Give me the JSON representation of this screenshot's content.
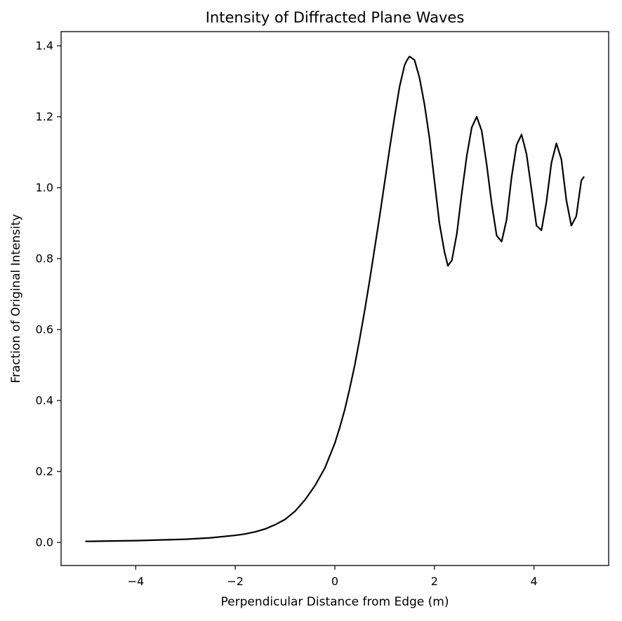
{
  "chart_data": {
    "type": "line",
    "title": "Intensity of Diffracted Plane Waves",
    "xlabel": "Perpendicular Distance from Edge (m)",
    "ylabel": "Fraction of Original Intensity",
    "xlim": [
      -5.5,
      5.5
    ],
    "ylim": [
      -0.065,
      1.44
    ],
    "x_ticks": [
      -4,
      -2,
      0,
      2,
      4
    ],
    "x_tick_labels": [
      "−4",
      "−2",
      "0",
      "2",
      "4"
    ],
    "y_ticks": [
      0.0,
      0.2,
      0.4,
      0.6,
      0.8,
      1.0,
      1.2,
      1.4
    ],
    "y_tick_labels": [
      "0.0",
      "0.2",
      "0.4",
      "0.6",
      "0.8",
      "1.0",
      "1.2",
      "1.4"
    ],
    "grid": false,
    "legend": "none",
    "line_color": "#000000",
    "series": [
      {
        "x": [
          -5.0,
          -4.5,
          -4.0,
          -3.5,
          -3.0,
          -2.5,
          -2.0,
          -1.8,
          -1.6,
          -1.4,
          -1.2,
          -1.0,
          -0.8,
          -0.6,
          -0.4,
          -0.2,
          0.0,
          0.1,
          0.2,
          0.3,
          0.4,
          0.5,
          0.6,
          0.7,
          0.8,
          0.9,
          1.0,
          1.1,
          1.2,
          1.3,
          1.4,
          1.45,
          1.5,
          1.6,
          1.7,
          1.8,
          1.9,
          2.0,
          2.1,
          2.2,
          2.27,
          2.35,
          2.45,
          2.55,
          2.65,
          2.75,
          2.85,
          2.95,
          3.05,
          3.15,
          3.25,
          3.35,
          3.45,
          3.55,
          3.65,
          3.75,
          3.85,
          3.95,
          4.05,
          4.15,
          4.25,
          4.35,
          4.45,
          4.55,
          4.65,
          4.75,
          4.85,
          4.95,
          5.0
        ],
        "y": [
          0.003,
          0.004,
          0.005,
          0.007,
          0.009,
          0.013,
          0.02,
          0.024,
          0.03,
          0.038,
          0.05,
          0.065,
          0.088,
          0.12,
          0.16,
          0.21,
          0.28,
          0.325,
          0.375,
          0.435,
          0.5,
          0.575,
          0.655,
          0.74,
          0.83,
          0.92,
          1.015,
          1.11,
          1.2,
          1.285,
          1.345,
          1.36,
          1.37,
          1.36,
          1.31,
          1.235,
          1.14,
          1.02,
          0.9,
          0.82,
          0.78,
          0.795,
          0.87,
          0.985,
          1.09,
          1.17,
          1.2,
          1.16,
          1.065,
          0.955,
          0.865,
          0.848,
          0.91,
          1.03,
          1.12,
          1.15,
          1.095,
          0.995,
          0.893,
          0.88,
          0.96,
          1.07,
          1.125,
          1.08,
          0.965,
          0.893,
          0.92,
          1.02,
          1.03
        ]
      }
    ]
  }
}
